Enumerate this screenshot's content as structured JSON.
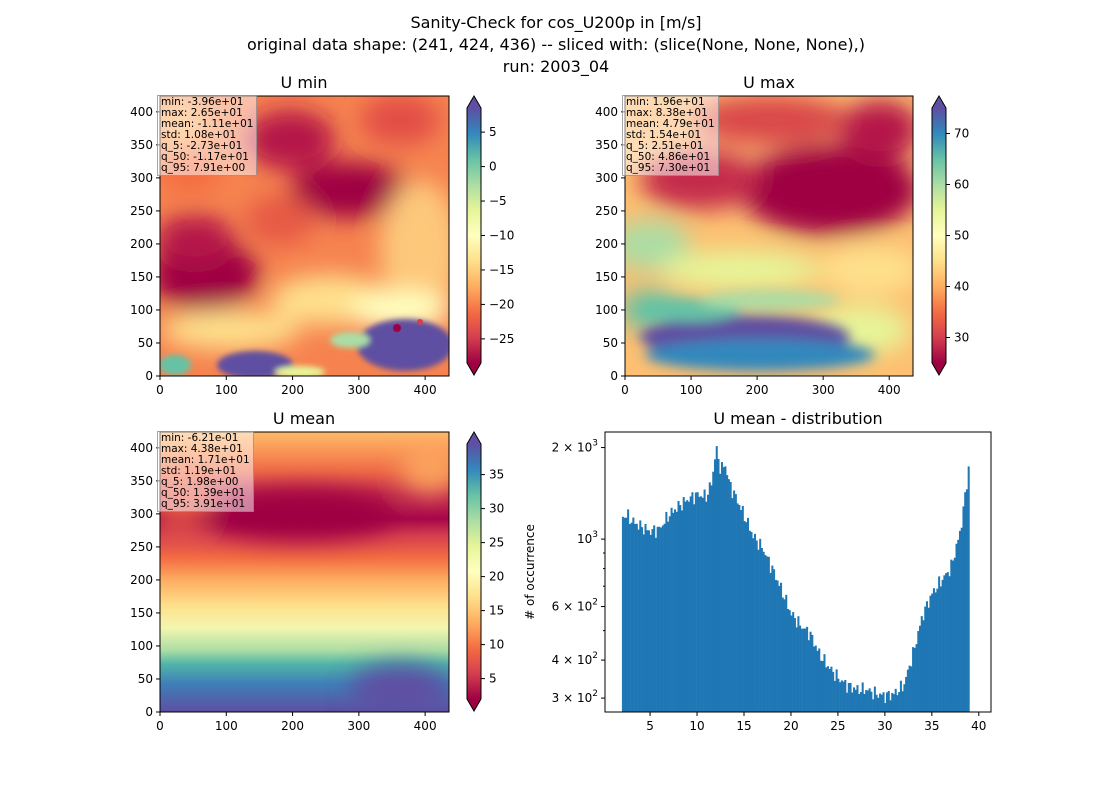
{
  "figure": {
    "title_lines": [
      "Sanity-Check for cos_U200p in [m/s]",
      "original data shape: (241, 424, 436) -- sliced with: (slice(None, None, None),)",
      "run: 2003_04"
    ]
  },
  "panels": [
    {
      "title": "U min",
      "colormap": "Spectral",
      "colorbar_ticks": [
        "−25",
        "−20",
        "−15",
        "−10",
        "−5",
        "0",
        "5"
      ],
      "colorbar_tick_values": [
        -25,
        -20,
        -15,
        -10,
        -5,
        0,
        5
      ],
      "colorbar_range": [
        -28.5,
        8.5
      ],
      "stats": [
        "min: -3.96e+01",
        "max: 2.65e+01",
        "mean: -1.11e+01",
        "std: 1.08e+01",
        "q_5: -2.73e+01",
        "q_50: -1.17e+01",
        "q_95: 7.91e+00"
      ]
    },
    {
      "title": "U max",
      "colormap": "Spectral",
      "colorbar_ticks": [
        "30",
        "40",
        "50",
        "60",
        "70"
      ],
      "colorbar_tick_values": [
        30,
        40,
        50,
        60,
        70
      ],
      "colorbar_range": [
        25,
        75
      ],
      "stats": [
        "min: 1.96e+01",
        "max: 8.38e+01",
        "mean: 4.79e+01",
        "std: 1.54e+01",
        "q_5: 2.51e+01",
        "q_50: 4.86e+01",
        "q_95: 7.30e+01"
      ]
    },
    {
      "title": "U mean",
      "colormap": "Spectral",
      "colorbar_ticks": [
        "5",
        "10",
        "15",
        "20",
        "25",
        "30",
        "35"
      ],
      "colorbar_tick_values": [
        5,
        10,
        15,
        20,
        25,
        30,
        35
      ],
      "colorbar_range": [
        2,
        39.5
      ],
      "stats": [
        "min: -6.21e-01",
        "max: 4.38e+01",
        "mean: 1.71e+01",
        "std: 1.19e+01",
        "q_5: 1.98e+00",
        "q_50: 1.39e+01",
        "q_95: 3.91e+01"
      ]
    }
  ],
  "map_axes": {
    "x_ticks": [
      "0",
      "100",
      "200",
      "300",
      "400"
    ],
    "x_tick_values": [
      0,
      100,
      200,
      300,
      400
    ],
    "x_range": [
      0,
      436
    ],
    "y_ticks": [
      "0",
      "50",
      "100",
      "150",
      "200",
      "250",
      "300",
      "350",
      "400"
    ],
    "y_tick_values": [
      0,
      50,
      100,
      150,
      200,
      250,
      300,
      350,
      400
    ],
    "y_range": [
      0,
      424
    ]
  },
  "chart_data": {
    "type": "bar",
    "title": "U mean - distribution",
    "ylabel": "# of occurrence",
    "xlabel": "",
    "yscale": "log",
    "ylim": [
      270,
      2250
    ],
    "xlim": [
      0.2,
      41.3
    ],
    "x_ticks": [
      "5",
      "10",
      "15",
      "20",
      "25",
      "30",
      "35",
      "40"
    ],
    "x_tick_values": [
      5,
      10,
      15,
      20,
      25,
      30,
      35,
      40
    ],
    "y_ticks_major": [
      {
        "base": "2",
        "exp": "3",
        "value": 2000
      },
      {
        "base": "",
        "exp": "3",
        "value": 1000
      },
      {
        "base": "6",
        "exp": "2",
        "value": 600
      },
      {
        "base": "4",
        "exp": "2",
        "value": 400
      },
      {
        "base": "3",
        "exp": "2",
        "value": 300
      }
    ],
    "y_ticks_minor": [
      500,
      700,
      800,
      900
    ],
    "bar_color": "#1f77b4",
    "bin_start": 2.0,
    "bin_end": 39.0,
    "anchors": [
      [
        2.0,
        1180
      ],
      [
        2.5,
        1200
      ],
      [
        3.0,
        1150
      ],
      [
        4.0,
        1100
      ],
      [
        5.0,
        1060
      ],
      [
        6.0,
        1080
      ],
      [
        7.0,
        1200
      ],
      [
        8.0,
        1280
      ],
      [
        9.0,
        1350
      ],
      [
        10.0,
        1400
      ],
      [
        11.0,
        1380
      ],
      [
        11.6,
        1550
      ],
      [
        12.0,
        2000
      ],
      [
        12.5,
        1700
      ],
      [
        13.0,
        1750
      ],
      [
        13.5,
        1500
      ],
      [
        14.0,
        1400
      ],
      [
        15.0,
        1200
      ],
      [
        16.0,
        1020
      ],
      [
        17.0,
        930
      ],
      [
        18.0,
        800
      ],
      [
        19.0,
        680
      ],
      [
        20.0,
        570
      ],
      [
        21.0,
        520
      ],
      [
        22.0,
        490
      ],
      [
        23.0,
        420
      ],
      [
        24.0,
        380
      ],
      [
        25.0,
        350
      ],
      [
        26.0,
        330
      ],
      [
        27.0,
        320
      ],
      [
        28.0,
        320
      ],
      [
        29.0,
        310
      ],
      [
        30.0,
        305
      ],
      [
        31.0,
        310
      ],
      [
        32.0,
        330
      ],
      [
        33.0,
        420
      ],
      [
        34.0,
        560
      ],
      [
        35.0,
        660
      ],
      [
        36.0,
        730
      ],
      [
        37.0,
        800
      ],
      [
        38.0,
        1050
      ],
      [
        38.5,
        1350
      ],
      [
        39.0,
        1800
      ]
    ]
  }
}
